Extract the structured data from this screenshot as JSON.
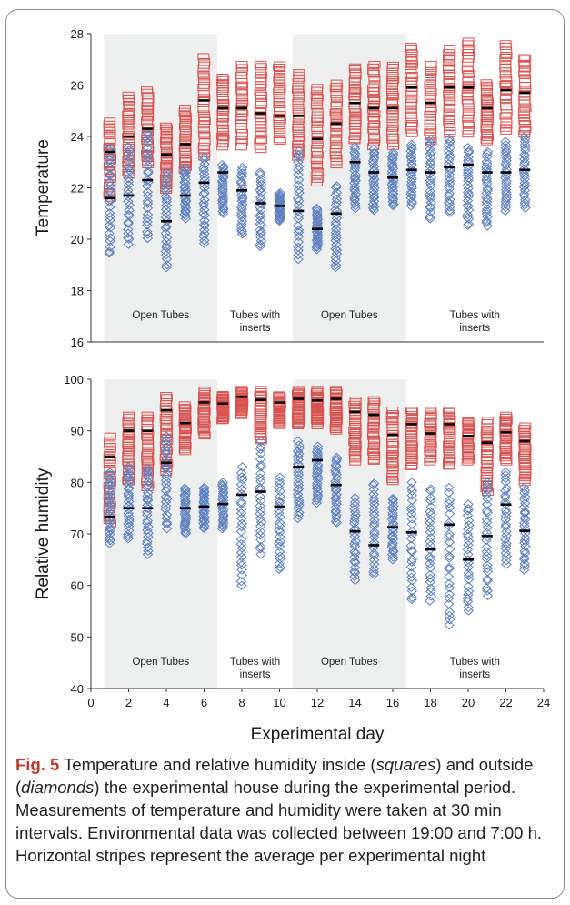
{
  "chart_data": [
    {
      "type": "scatter",
      "ylabel": "Temperature",
      "xlim": [
        0,
        24
      ],
      "ylim": [
        16,
        28
      ],
      "yticks": [
        16,
        18,
        20,
        22,
        24,
        26,
        28
      ],
      "grid": false,
      "phases": [
        {
          "label_lines": [
            "Open Tubes"
          ],
          "start": 0.7,
          "end": 6.7,
          "shaded": true
        },
        {
          "label_lines": [
            "Tubes with",
            "inserts"
          ],
          "start": 6.7,
          "end": 10.7,
          "shaded": false
        },
        {
          "label_lines": [
            "Open Tubes"
          ],
          "start": 10.7,
          "end": 16.7,
          "shaded": true
        },
        {
          "label_lines": [
            "Tubes with",
            "inserts"
          ],
          "start": 16.7,
          "end": 24,
          "shaded": false
        }
      ],
      "days": [
        1,
        2,
        3,
        4,
        5,
        6,
        7,
        8,
        9,
        10,
        11,
        12,
        13,
        14,
        15,
        16,
        17,
        18,
        19,
        20,
        21,
        22,
        23
      ],
      "series": [
        {
          "marker": "square",
          "color": "#d9534f",
          "ranges": [
            [
              21.6,
              24.6
            ],
            [
              22.5,
              25.6
            ],
            [
              22.9,
              25.8
            ],
            [
              21.9,
              24.4
            ],
            [
              22.7,
              25.1
            ],
            [
              23.2,
              27.1
            ],
            [
              23.6,
              26.3
            ],
            [
              23.6,
              26.8
            ],
            [
              23.5,
              26.8
            ],
            [
              23.8,
              26.8
            ],
            [
              23.2,
              26.5
            ],
            [
              22.2,
              25.9
            ],
            [
              22.9,
              26.1
            ],
            [
              23.8,
              26.7
            ],
            [
              23.6,
              26.8
            ],
            [
              23.6,
              26.8
            ],
            [
              24.1,
              27.5
            ],
            [
              23.8,
              26.8
            ],
            [
              24.1,
              27.4
            ],
            [
              24.1,
              27.7
            ],
            [
              23.8,
              26.1
            ],
            [
              24.2,
              27.6
            ],
            [
              24.1,
              27.1
            ]
          ],
          "means": [
            23.4,
            24.0,
            24.3,
            23.3,
            23.7,
            25.4,
            25.1,
            25.1,
            24.9,
            24.8,
            24.8,
            23.9,
            24.5,
            25.3,
            25.1,
            25.1,
            25.9,
            25.3,
            25.9,
            25.9,
            25.1,
            25.8,
            25.7
          ]
        },
        {
          "marker": "diamond",
          "color": "#5b7fc0",
          "ranges": [
            [
              19.4,
              23.6
            ],
            [
              19.8,
              23.6
            ],
            [
              20.0,
              24.2
            ],
            [
              18.9,
              22.6
            ],
            [
              20.8,
              22.8
            ],
            [
              19.8,
              23.2
            ],
            [
              21.0,
              22.9
            ],
            [
              20.2,
              22.8
            ],
            [
              19.7,
              22.6
            ],
            [
              20.7,
              21.8
            ],
            [
              19.2,
              23.5
            ],
            [
              19.6,
              21.2
            ],
            [
              18.9,
              22.1
            ],
            [
              21.2,
              23.6
            ],
            [
              21.1,
              23.5
            ],
            [
              21.3,
              23.4
            ],
            [
              21.3,
              23.7
            ],
            [
              20.8,
              23.9
            ],
            [
              21.0,
              23.9
            ],
            [
              20.5,
              23.6
            ],
            [
              20.5,
              23.4
            ],
            [
              21.1,
              23.8
            ],
            [
              21.2,
              24.0
            ]
          ],
          "means": [
            21.6,
            21.7,
            22.3,
            20.7,
            21.7,
            22.2,
            22.6,
            21.9,
            21.4,
            21.3,
            21.1,
            20.4,
            21.0,
            23.0,
            22.6,
            22.4,
            22.7,
            22.6,
            22.8,
            22.9,
            22.6,
            22.6,
            22.7
          ]
        }
      ]
    },
    {
      "type": "scatter",
      "xlabel": "Experimental day",
      "ylabel": "Relative humidity",
      "xlim": [
        0,
        24
      ],
      "ylim": [
        40,
        100
      ],
      "yticks": [
        40,
        50,
        60,
        70,
        80,
        90,
        100
      ],
      "xticks": [
        0,
        2,
        4,
        6,
        8,
        10,
        12,
        14,
        16,
        18,
        20,
        22,
        24
      ],
      "grid": false,
      "phases": [
        {
          "label_lines": [
            "Open Tubes"
          ],
          "start": 0.7,
          "end": 6.7,
          "shaded": true
        },
        {
          "label_lines": [
            "Tubes with",
            "inserts"
          ],
          "start": 6.7,
          "end": 10.7,
          "shaded": false
        },
        {
          "label_lines": [
            "Open Tubes"
          ],
          "start": 10.7,
          "end": 16.7,
          "shaded": true
        },
        {
          "label_lines": [
            "Tubes with",
            "inserts"
          ],
          "start": 16.7,
          "end": 24,
          "shaded": false
        }
      ],
      "days": [
        1,
        2,
        3,
        4,
        5,
        6,
        7,
        8,
        9,
        10,
        11,
        12,
        13,
        14,
        15,
        16,
        17,
        18,
        19,
        20,
        21,
        22,
        23
      ],
      "series": [
        {
          "marker": "square",
          "color": "#d9534f",
          "ranges": [
            [
              72,
              89
            ],
            [
              80,
              93
            ],
            [
              79,
              93
            ],
            [
              82,
              97
            ],
            [
              86,
              95
            ],
            [
              89,
              98
            ],
            [
              92,
              97
            ],
            [
              93,
              98
            ],
            [
              88,
              98
            ],
            [
              91,
              97
            ],
            [
              91,
              98
            ],
            [
              91,
              98
            ],
            [
              90,
              98
            ],
            [
              84,
              96
            ],
            [
              84,
              96
            ],
            [
              80,
              94
            ],
            [
              83,
              94
            ],
            [
              84,
              94
            ],
            [
              83,
              94
            ],
            [
              84,
              92
            ],
            [
              78,
              92
            ],
            [
              84,
              93
            ],
            [
              80,
              91
            ]
          ],
          "means": [
            85,
            90,
            90,
            94,
            91.5,
            95.5,
            95.3,
            96.6,
            96,
            95.5,
            96.2,
            95.9,
            96.2,
            93.7,
            93.1,
            89.2,
            91.3,
            89.5,
            91.3,
            89,
            87.7,
            89.7,
            88
          ]
        },
        {
          "marker": "diamond",
          "color": "#5b7fc0",
          "ranges": [
            [
              68,
              82
            ],
            [
              69,
              83
            ],
            [
              66,
              83
            ],
            [
              71,
              89
            ],
            [
              70,
              79
            ],
            [
              71,
              79
            ],
            [
              71,
              80
            ],
            [
              60,
              83
            ],
            [
              66,
              88
            ],
            [
              63,
              81
            ],
            [
              73,
              88
            ],
            [
              76,
              87
            ],
            [
              72,
              85
            ],
            [
              61,
              77
            ],
            [
              62,
              80
            ],
            [
              65,
              77
            ],
            [
              57,
              80
            ],
            [
              57,
              79
            ],
            [
              52,
              79
            ],
            [
              55,
              76
            ],
            [
              58,
              80
            ],
            [
              64,
              82
            ],
            [
              63,
              79
            ]
          ],
          "means": [
            73.3,
            75,
            75,
            83.8,
            75,
            75.3,
            75.8,
            77.6,
            78.2,
            75.3,
            83,
            84.3,
            79.5,
            70.5,
            67.8,
            71.3,
            70.3,
            67,
            71.8,
            65,
            69.6,
            75.7,
            70.6
          ]
        }
      ]
    }
  ],
  "caption": {
    "fig_label": "Fig. 5",
    "text_parts": [
      "Temperature and relative humidity inside (",
      "squares",
      ") and outside (",
      "diamonds",
      ") the experimental house during the experimental period. Measurements of temperature and humidity were taken at 30 min intervals. Environmental data was collected between 19:00 and 7:00 h. Horizontal stripes represent the average per experimental night"
    ]
  }
}
